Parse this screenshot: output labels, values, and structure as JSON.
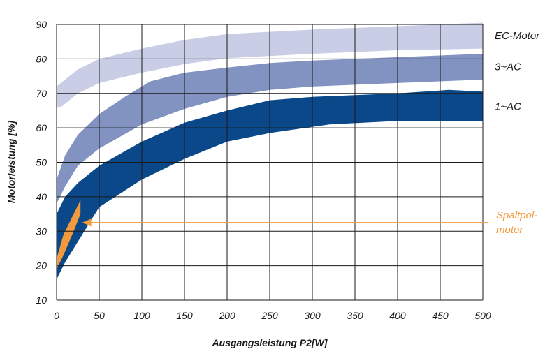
{
  "chart_data": {
    "type": "area",
    "xlabel": "Ausgangsleistung P2[W]",
    "ylabel": "Motorleistung [%]",
    "xlim": [
      0,
      500
    ],
    "ylim": [
      10,
      90
    ],
    "x_ticks": [
      0,
      50,
      100,
      150,
      200,
      250,
      300,
      350,
      400,
      450,
      500
    ],
    "y_ticks": [
      10,
      20,
      30,
      40,
      50,
      60,
      70,
      80,
      90
    ],
    "grid": true,
    "series": [
      {
        "name": "EC-Motor",
        "color": "#c9cee6",
        "upper": [
          [
            0,
            72
          ],
          [
            10,
            74
          ],
          [
            25,
            77
          ],
          [
            50,
            80
          ],
          [
            100,
            83
          ],
          [
            150,
            85.5
          ],
          [
            200,
            87.2
          ],
          [
            300,
            88.5
          ],
          [
            400,
            89.5
          ],
          [
            500,
            90.5
          ]
        ],
        "lower": [
          [
            0,
            66
          ],
          [
            5,
            66
          ],
          [
            25,
            70
          ],
          [
            50,
            73
          ],
          [
            100,
            76
          ],
          [
            150,
            78.5
          ],
          [
            200,
            80.2
          ],
          [
            300,
            81.5
          ],
          [
            400,
            82.5
          ],
          [
            500,
            83
          ]
        ]
      },
      {
        "name": "3~AC",
        "color": "#8293c2",
        "upper": [
          [
            0,
            45
          ],
          [
            10,
            52
          ],
          [
            25,
            58
          ],
          [
            50,
            64
          ],
          [
            80,
            69
          ],
          [
            110,
            73.5
          ],
          [
            150,
            76
          ],
          [
            200,
            77.5
          ],
          [
            250,
            78.8
          ],
          [
            300,
            79.5
          ],
          [
            400,
            80.5
          ],
          [
            500,
            81.5
          ]
        ],
        "lower": [
          [
            0,
            38
          ],
          [
            10,
            43
          ],
          [
            25,
            49
          ],
          [
            50,
            54
          ],
          [
            100,
            61
          ],
          [
            150,
            65.5
          ],
          [
            200,
            69
          ],
          [
            250,
            71
          ],
          [
            300,
            72
          ],
          [
            400,
            73
          ],
          [
            500,
            74
          ]
        ]
      },
      {
        "name": "1~AC",
        "color": "#0a4889",
        "upper": [
          [
            0,
            35
          ],
          [
            10,
            40
          ],
          [
            25,
            44
          ],
          [
            50,
            49
          ],
          [
            100,
            56
          ],
          [
            150,
            61.5
          ],
          [
            200,
            65
          ],
          [
            250,
            68
          ],
          [
            300,
            69
          ],
          [
            350,
            69.5
          ],
          [
            400,
            70
          ],
          [
            460,
            71
          ],
          [
            500,
            70.5
          ]
        ],
        "lower": [
          [
            0,
            16
          ],
          [
            10,
            21
          ],
          [
            25,
            27
          ],
          [
            50,
            37
          ],
          [
            100,
            45
          ],
          [
            150,
            51
          ],
          [
            200,
            56
          ],
          [
            250,
            58.5
          ],
          [
            320,
            61
          ],
          [
            400,
            62
          ],
          [
            500,
            62
          ]
        ]
      }
    ],
    "annotation": {
      "label_lines": [
        "Spaltpol-",
        "motor"
      ],
      "color": "#f39a3c",
      "shape": [
        [
          0,
          22
        ],
        [
          8,
          29
        ],
        [
          28,
          39
        ],
        [
          28,
          35
        ],
        [
          20,
          30
        ],
        [
          8,
          23
        ],
        [
          0,
          19
        ]
      ],
      "arrow_y": 32.5,
      "arrow_x_from": 500,
      "arrow_x_to": 30
    }
  }
}
